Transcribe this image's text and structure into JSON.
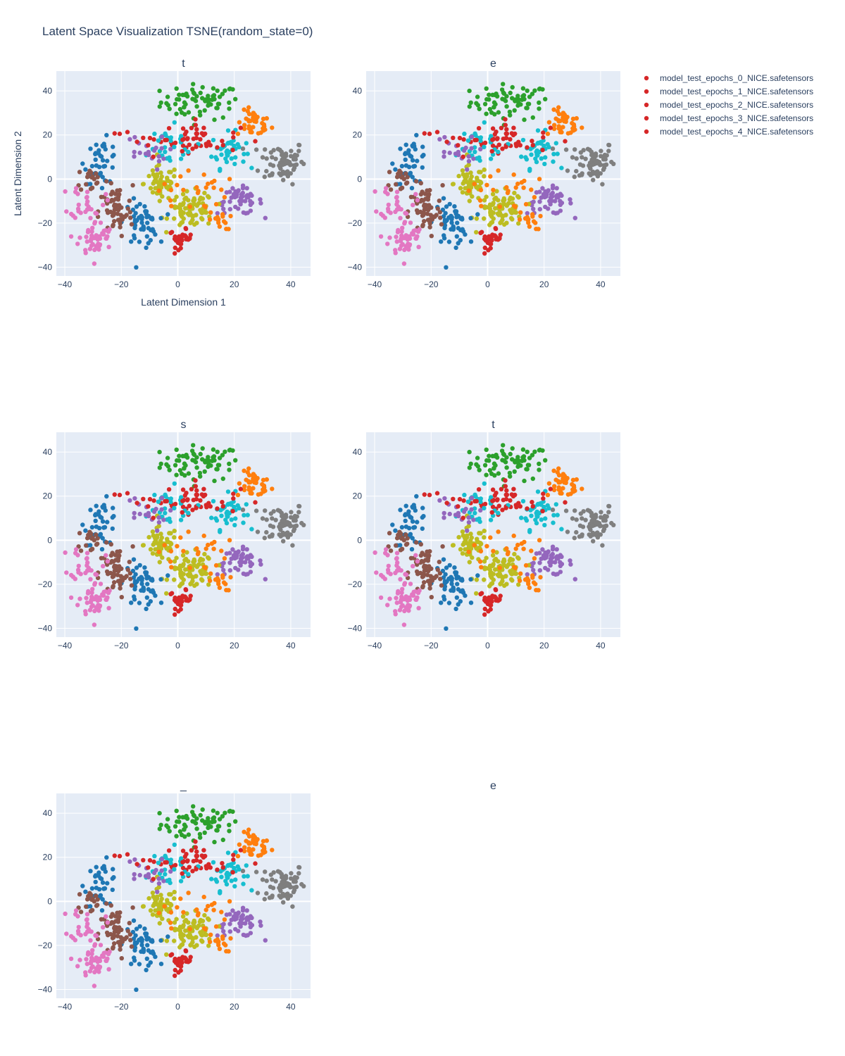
{
  "chart_data": {
    "type": "scatter",
    "title": "Latent Space Visualization TSNE(random_state=0)",
    "xlabel": "Latent Dimension 1",
    "ylabel": "Latent Dimension 2",
    "xlim": [
      -43,
      47
    ],
    "ylim": [
      -44,
      49
    ],
    "xticks": [
      -40,
      -20,
      0,
      20,
      40
    ],
    "yticks": [
      -40,
      -20,
      0,
      20,
      40
    ],
    "tick_labels_x": [
      "−40",
      "−20",
      "0",
      "20",
      "40"
    ],
    "tick_labels_y": [
      "−40",
      "−20",
      "0",
      "20",
      "40"
    ],
    "subplot_titles": [
      "t",
      "e",
      "s",
      "t",
      "_",
      "e"
    ],
    "legend": {
      "placement": "top-right",
      "color": "#d62728",
      "entries": [
        "model_test_epochs_0_NICE.safetensors",
        "model_test_epochs_1_NICE.safetensors",
        "model_test_epochs_2_NICE.safetensors",
        "model_test_epochs_3_NICE.safetensors",
        "model_test_epochs_4_NICE.safetensors"
      ]
    },
    "grid": true,
    "cluster_colors": [
      "#1f77b4",
      "#ff7f0e",
      "#2ca02c",
      "#d62728",
      "#9467bd",
      "#8c564b",
      "#e377c2",
      "#7f7f7f",
      "#bcbd22",
      "#17becf"
    ],
    "clusters": [
      {
        "color": "#2ca02c",
        "center": [
          8,
          35
        ],
        "spread": [
          7,
          4
        ],
        "count": 70
      },
      {
        "color": "#ff7f0e",
        "center": [
          27,
          25
        ],
        "spread": [
          3,
          3
        ],
        "count": 40
      },
      {
        "color": "#7f7f7f",
        "center": [
          37,
          8
        ],
        "spread": [
          4,
          5
        ],
        "count": 70
      },
      {
        "color": "#17becf",
        "center": [
          18,
          13
        ],
        "spread": [
          3,
          4
        ],
        "count": 40
      },
      {
        "color": "#d62728",
        "center": [
          8,
          18
        ],
        "spread": [
          7,
          3
        ],
        "count": 40
      },
      {
        "color": "#d62728",
        "center": [
          1,
          -27
        ],
        "spread": [
          2,
          2
        ],
        "count": 30
      },
      {
        "color": "#9467bd",
        "center": [
          22,
          -10
        ],
        "spread": [
          4,
          3
        ],
        "count": 50
      },
      {
        "color": "#bcbd22",
        "center": [
          -6,
          -2
        ],
        "spread": [
          3,
          4
        ],
        "count": 60
      },
      {
        "color": "#bcbd22",
        "center": [
          5,
          -14
        ],
        "spread": [
          4,
          4
        ],
        "count": 80
      },
      {
        "color": "#1f77b4",
        "center": [
          -27,
          8
        ],
        "spread": [
          3,
          5
        ],
        "count": 40
      },
      {
        "color": "#1f77b4",
        "center": [
          -13,
          -20
        ],
        "spread": [
          3,
          5
        ],
        "count": 50
      },
      {
        "color": "#8c564b",
        "center": [
          -22,
          -15
        ],
        "spread": [
          3,
          6
        ],
        "count": 60
      },
      {
        "color": "#8c564b",
        "center": [
          -30,
          0
        ],
        "spread": [
          3,
          3
        ],
        "count": 20
      },
      {
        "color": "#e377c2",
        "center": [
          -29,
          -27
        ],
        "spread": [
          3,
          4
        ],
        "count": 50
      },
      {
        "color": "#e377c2",
        "center": [
          -32,
          -10
        ],
        "spread": [
          3,
          4
        ],
        "count": 30
      },
      {
        "color": "#17becf",
        "center": [
          -5,
          14
        ],
        "spread": [
          6,
          5
        ],
        "count": 30
      },
      {
        "color": "#9467bd",
        "center": [
          -12,
          12
        ],
        "spread": [
          4,
          4
        ],
        "count": 20
      },
      {
        "color": "#ff7f0e",
        "center": [
          15,
          -19
        ],
        "spread": [
          2,
          2
        ],
        "count": 15
      },
      {
        "color": "#ff7f0e",
        "center": [
          5,
          -5
        ],
        "spread": [
          6,
          5
        ],
        "count": 25
      },
      {
        "color": "#d62728",
        "center": [
          -5,
          19
        ],
        "spread": [
          8,
          4
        ],
        "count": 20
      }
    ]
  }
}
